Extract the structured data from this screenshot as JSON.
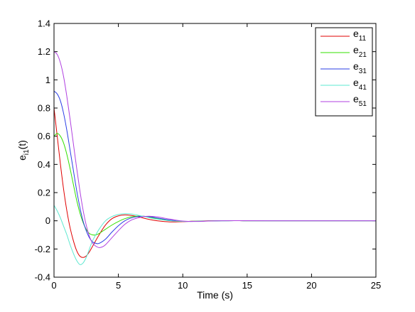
{
  "chart_data": {
    "type": "line",
    "xlabel": "Time (s)",
    "ylabel": "e",
    "ylabel_sub": "i1",
    "ylabel_suffix": "(t)",
    "xlim": [
      0,
      25
    ],
    "ylim": [
      -0.4,
      1.4
    ],
    "xticks": [
      "0",
      "5",
      "10",
      "15",
      "20",
      "25"
    ],
    "yticks": [
      "-0.4",
      "-0.2",
      "0",
      "0.2",
      "0.4",
      "0.6",
      "0.8",
      "1",
      "1.2",
      "1.4"
    ],
    "grid": false,
    "legend_position": "top-right",
    "series": [
      {
        "name": "e",
        "sub": "11",
        "color": "#e00000",
        "x": [
          0,
          0.25,
          0.5,
          0.75,
          1,
          1.25,
          1.5,
          1.75,
          2,
          2.25,
          2.5,
          2.75,
          3,
          3.5,
          4,
          4.5,
          5,
          5.5,
          6,
          6.5,
          7,
          7.5,
          8,
          9,
          10,
          11,
          12,
          13,
          14,
          15,
          17,
          20,
          25
        ],
        "y": [
          0.8,
          0.6,
          0.4,
          0.22,
          0.07,
          -0.05,
          -0.14,
          -0.21,
          -0.25,
          -0.26,
          -0.25,
          -0.22,
          -0.18,
          -0.1,
          -0.03,
          0.015,
          0.035,
          0.042,
          0.038,
          0.03,
          0.018,
          0.008,
          0.0,
          -0.008,
          -0.006,
          -0.002,
          0.0,
          0.001,
          0.001,
          0.0,
          0.0,
          0.0,
          0.0
        ]
      },
      {
        "name": "e",
        "sub": "21",
        "color": "#33e000",
        "x": [
          0,
          0.25,
          0.5,
          0.75,
          1,
          1.25,
          1.5,
          1.75,
          2,
          2.25,
          2.5,
          2.75,
          3,
          3.25,
          3.5,
          4,
          4.5,
          5,
          5.5,
          6,
          6.5,
          7,
          7.5,
          8,
          9,
          10,
          11,
          12,
          13,
          14,
          15,
          17,
          20,
          25
        ],
        "y": [
          0.6,
          0.62,
          0.6,
          0.55,
          0.47,
          0.37,
          0.26,
          0.15,
          0.06,
          -0.01,
          -0.06,
          -0.09,
          -0.1,
          -0.1,
          -0.09,
          -0.06,
          -0.03,
          -0.005,
          0.015,
          0.028,
          0.033,
          0.032,
          0.025,
          0.015,
          0.002,
          -0.004,
          -0.003,
          -0.001,
          0.0,
          0.001,
          0.0,
          0.0,
          0.0,
          0.0
        ]
      },
      {
        "name": "e",
        "sub": "31",
        "color": "#2a3ee6",
        "x": [
          0,
          0.25,
          0.5,
          0.75,
          1,
          1.25,
          1.5,
          1.75,
          2,
          2.25,
          2.5,
          2.75,
          3,
          3.25,
          3.5,
          4,
          4.5,
          5,
          5.5,
          6,
          6.5,
          7,
          7.5,
          8,
          9,
          10,
          11,
          12,
          13,
          14,
          15,
          17,
          20,
          25
        ],
        "y": [
          0.92,
          0.9,
          0.85,
          0.76,
          0.64,
          0.5,
          0.36,
          0.22,
          0.1,
          0.0,
          -0.07,
          -0.12,
          -0.15,
          -0.16,
          -0.16,
          -0.13,
          -0.08,
          -0.035,
          0.0,
          0.02,
          0.03,
          0.032,
          0.028,
          0.02,
          0.005,
          -0.004,
          -0.004,
          -0.001,
          0.0,
          0.001,
          0.0,
          0.0,
          0.0,
          0.0
        ]
      },
      {
        "name": "e",
        "sub": "41",
        "color": "#5ee8d0",
        "x": [
          0,
          0.25,
          0.5,
          0.75,
          1,
          1.25,
          1.5,
          1.75,
          2,
          2.25,
          2.5,
          2.75,
          3,
          3.5,
          4,
          4.5,
          5,
          5.5,
          6,
          6.5,
          7,
          7.5,
          8,
          9,
          10,
          11,
          12,
          13,
          14,
          15,
          17,
          20,
          25
        ],
        "y": [
          0.11,
          0.07,
          0.02,
          -0.04,
          -0.1,
          -0.17,
          -0.23,
          -0.28,
          -0.31,
          -0.3,
          -0.26,
          -0.2,
          -0.14,
          -0.06,
          0.0,
          0.03,
          0.045,
          0.05,
          0.048,
          0.04,
          0.03,
          0.02,
          0.012,
          0.0,
          -0.004,
          -0.003,
          -0.001,
          0.0,
          0.001,
          0.0,
          0.0,
          0.0,
          0.0
        ]
      },
      {
        "name": "e",
        "sub": "51",
        "color": "#b040e0",
        "x": [
          0,
          0.25,
          0.5,
          0.75,
          1,
          1.25,
          1.5,
          1.75,
          2,
          2.25,
          2.5,
          2.75,
          3,
          3.25,
          3.5,
          3.75,
          4,
          4.5,
          5,
          5.5,
          6,
          6.5,
          7,
          7.5,
          8,
          8.5,
          9,
          10,
          11,
          12,
          13,
          14,
          15,
          17,
          20,
          25
        ],
        "y": [
          1.2,
          1.18,
          1.12,
          1.02,
          0.88,
          0.72,
          0.55,
          0.38,
          0.22,
          0.08,
          -0.03,
          -0.11,
          -0.16,
          -0.18,
          -0.19,
          -0.185,
          -0.17,
          -0.12,
          -0.07,
          -0.025,
          0.005,
          0.02,
          0.03,
          0.032,
          0.028,
          0.02,
          0.012,
          -0.002,
          -0.005,
          -0.002,
          0.0,
          0.001,
          0.001,
          0.0,
          0.0,
          0.0
        ]
      }
    ]
  }
}
